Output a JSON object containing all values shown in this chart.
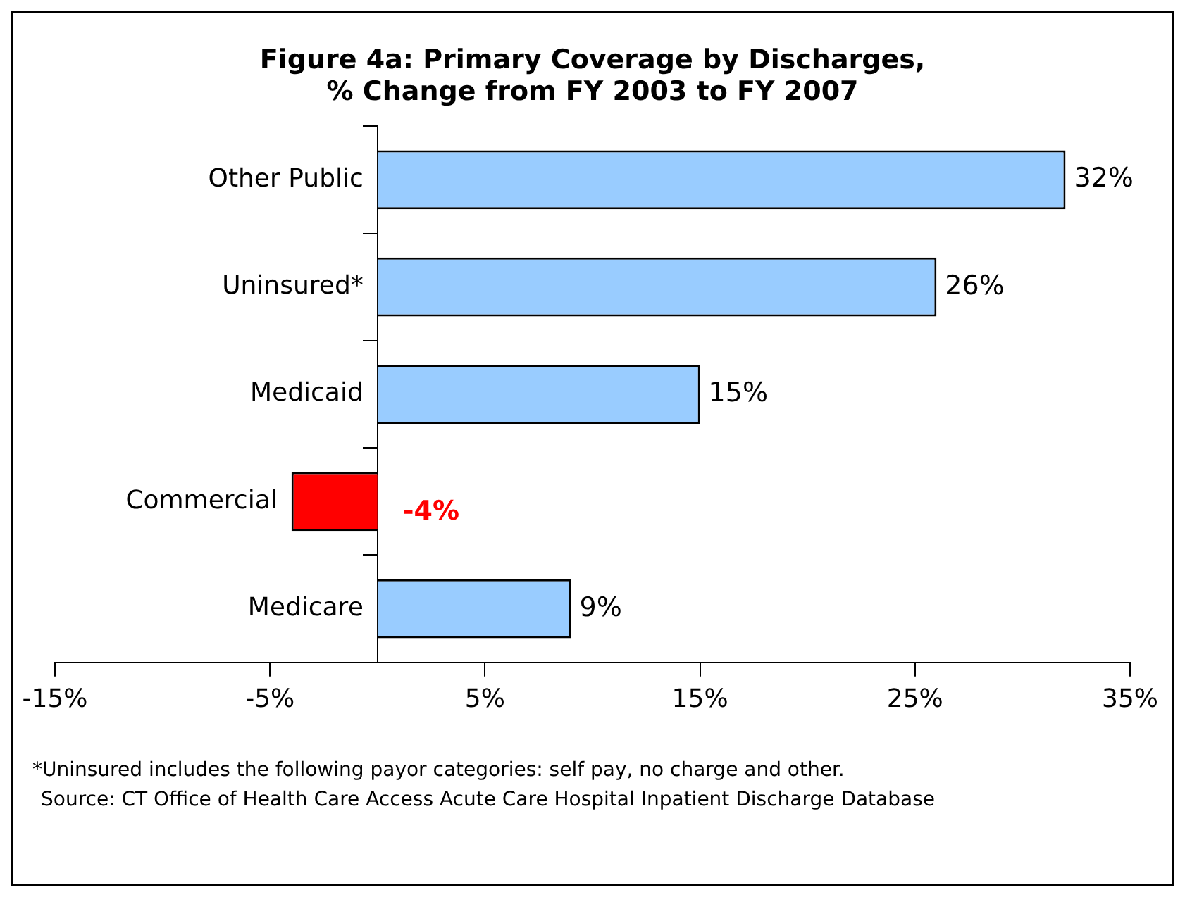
{
  "chart_data": {
    "type": "bar",
    "orientation": "horizontal",
    "title": "Figure 4a: Primary Coverage by Discharges,\n% Change from FY 2003 to FY 2007",
    "categories": [
      "Other Public",
      "Uninsured*",
      "Medicaid",
      "Commercial",
      "Medicare"
    ],
    "values": [
      32,
      26,
      15,
      -4,
      9
    ],
    "colors": [
      "#99ccff",
      "#99ccff",
      "#99ccff",
      "#ff0000",
      "#99ccff"
    ],
    "value_labels": [
      "32%",
      "26%",
      "15%",
      "-4%",
      "9%"
    ],
    "xlim": [
      -15,
      35
    ],
    "xticks": [
      {
        "value": -15,
        "label": "-15%"
      },
      {
        "value": -5,
        "label": "-5%"
      },
      {
        "value": 5,
        "label": "5%"
      },
      {
        "value": 15,
        "label": "15%"
      },
      {
        "value": 25,
        "label": "25%"
      },
      {
        "value": 35,
        "label": "35%"
      }
    ],
    "grid": false,
    "legend": false,
    "annotations": [
      "*Uninsured includes the following payor categories: self pay, no charge and other.",
      "Source: CT Office of Health Care Access Acute Care Hospital Inpatient Discharge Database"
    ]
  }
}
